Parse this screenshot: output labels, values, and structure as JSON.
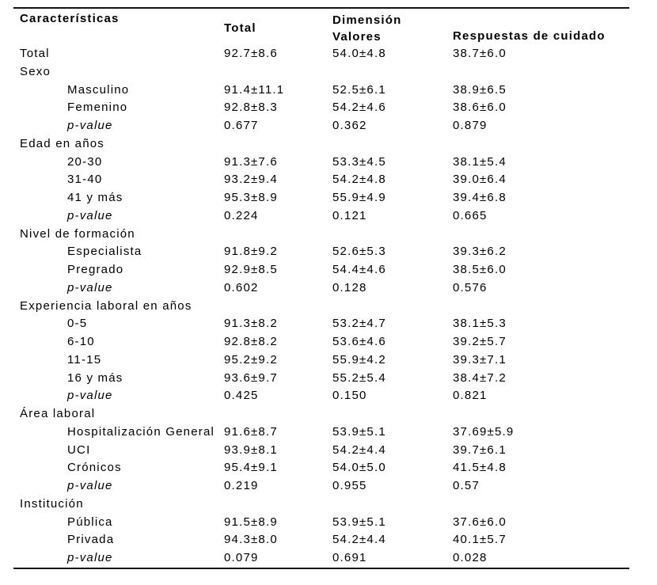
{
  "table": {
    "header": {
      "characteristics": "Características",
      "total": "Total",
      "dimension_line1": "Dimensión",
      "dimension_line2": "Valores",
      "respuestas": "Respuestas de cuidado"
    },
    "rows": [
      {
        "kind": "data",
        "indent": 0,
        "label": "Total",
        "total": "92.7±8.6",
        "valores": "54.0±4.8",
        "respuestas": "38.7±6.0"
      },
      {
        "kind": "section",
        "indent": 0,
        "label": "Sexo"
      },
      {
        "kind": "data",
        "indent": 1,
        "label": "Masculino",
        "total": "91.4±11.1",
        "valores": "52.5±6.1",
        "respuestas": "38.9±6.5"
      },
      {
        "kind": "data",
        "indent": 1,
        "label": "Femenino",
        "total": "92.8±8.3",
        "valores": "54.2±4.6",
        "respuestas": "38.6±6.0"
      },
      {
        "kind": "pvalue",
        "indent": 1,
        "label": "p-value",
        "total": "0.677",
        "valores": "0.362",
        "respuestas": "0.879"
      },
      {
        "kind": "section",
        "indent": 0,
        "label": "Edad en años"
      },
      {
        "kind": "data",
        "indent": 1,
        "label": "20-30",
        "total": "91.3±7.6",
        "valores": "53.3±4.5",
        "respuestas": "38.1±5.4"
      },
      {
        "kind": "data",
        "indent": 1,
        "label": "31-40",
        "total": "93.2±9.4",
        "valores": "54.2±4.8",
        "respuestas": "39.0±6.4"
      },
      {
        "kind": "data",
        "indent": 1,
        "label": "41 y más",
        "total": "95.3±8.9",
        "valores": "55.9±4.9",
        "respuestas": "39.4±6.8"
      },
      {
        "kind": "pvalue",
        "indent": 1,
        "label": "p-value",
        "total": "0.224",
        "valores": "0.121",
        "respuestas": "0.665"
      },
      {
        "kind": "section",
        "indent": 0,
        "label": "Nivel de formación"
      },
      {
        "kind": "data",
        "indent": 1,
        "label": "Especialista",
        "total": "91.8±9.2",
        "valores": "52.6±5.3",
        "respuestas": "39.3±6.2"
      },
      {
        "kind": "data",
        "indent": 1,
        "label": "Pregrado",
        "total": "92.9±8.5",
        "valores": "54.4±4.6",
        "respuestas": "38.5±6.0"
      },
      {
        "kind": "pvalue",
        "indent": 1,
        "label": "p-value",
        "total": "0.602",
        "valores": "0.128",
        "respuestas": "0.576"
      },
      {
        "kind": "section",
        "indent": 0,
        "label": "Experiencia laboral en años"
      },
      {
        "kind": "data",
        "indent": 1,
        "label": "0-5",
        "total": "91.3±8.2",
        "valores": "53.2±4.7",
        "respuestas": "38.1±5.3"
      },
      {
        "kind": "data",
        "indent": 1,
        "label": "6-10",
        "total": "92.8±8.2",
        "valores": "53.6±4.6",
        "respuestas": "39.2±5.7"
      },
      {
        "kind": "data",
        "indent": 1,
        "label": "11-15",
        "total": "95.2±9.2",
        "valores": "55.9±4.2",
        "respuestas": "39.3±7.1"
      },
      {
        "kind": "data",
        "indent": 1,
        "label": "16 y más",
        "total": "93.6±9.7",
        "valores": "55.2±5.4",
        "respuestas": "38.4±7.2"
      },
      {
        "kind": "pvalue",
        "indent": 1,
        "label": "p-value",
        "total": "0.425",
        "valores": "0.150",
        "respuestas": "0.821"
      },
      {
        "kind": "section",
        "indent": 0,
        "label": "Área laboral"
      },
      {
        "kind": "data",
        "indent": 1,
        "label": "Hospitalización General",
        "total": "91.6±8.7",
        "valores": "53.9±5.1",
        "respuestas": "37.69±5.9"
      },
      {
        "kind": "data",
        "indent": 1,
        "label": "UCI",
        "total": "93.9±8.1",
        "valores": "54.2±4.4",
        "respuestas": "39.7±6.1"
      },
      {
        "kind": "data",
        "indent": 1,
        "label": "Crónicos",
        "total": "95.4±9.1",
        "valores": "54.0±5.0",
        "respuestas": "41.5±4.8"
      },
      {
        "kind": "pvalue",
        "indent": 1,
        "label": "p-value",
        "total": "0.219",
        "valores": "0.955",
        "respuestas": "0.57"
      },
      {
        "kind": "section",
        "indent": 0,
        "label": "Institución"
      },
      {
        "kind": "data",
        "indent": 1,
        "label": "Pública",
        "total": "91.5±8.9",
        "valores": "53.9±5.1",
        "respuestas": "37.6±6.0"
      },
      {
        "kind": "data",
        "indent": 1,
        "label": "Privada",
        "total": "94.3±8.0",
        "valores": "54.2±4.4",
        "respuestas": "40.1±5.7"
      },
      {
        "kind": "pvalue",
        "indent": 1,
        "label": "p-value",
        "total": "0.079",
        "valores": "0.691",
        "respuestas": "0.028"
      }
    ]
  }
}
